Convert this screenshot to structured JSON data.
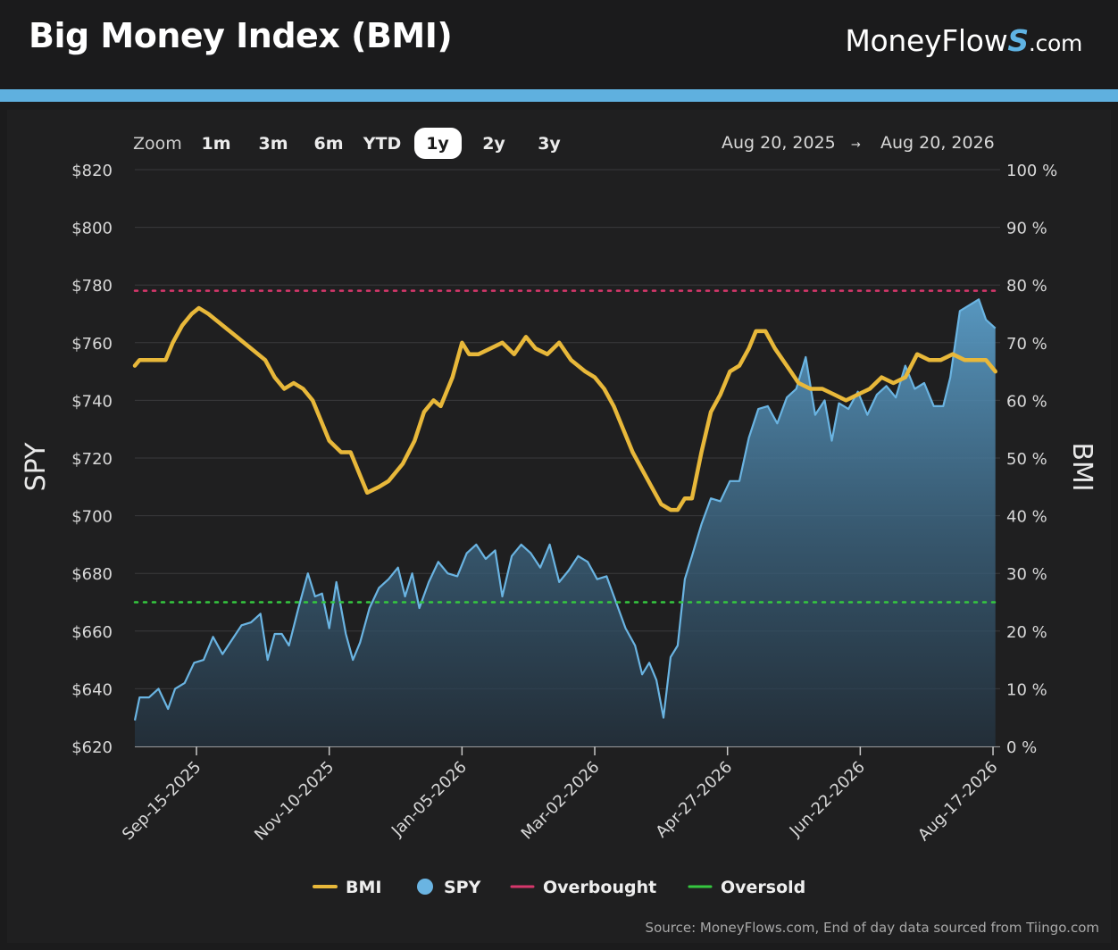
{
  "header": {
    "title": "Big Money Index (BMI)",
    "brand_prefix": "MoneyFlow",
    "brand_mark": "S",
    "brand_suffix": ".com"
  },
  "zoom": {
    "label": "Zoom",
    "options": [
      "1m",
      "3m",
      "6m",
      "YTD",
      "1y",
      "2y",
      "3y"
    ],
    "selected": "1y"
  },
  "date_range": {
    "from": "Aug 20, 2025",
    "arrow": "→",
    "to": "Aug 20, 2026"
  },
  "source": "Source: MoneyFlows.com, End of day data sourced from Tiingo.com",
  "colors": {
    "bmi": "#e8b83a",
    "spy": "#6ab4e2",
    "overbought": "#d6376b",
    "oversold": "#35c73f",
    "grid": "#3a3a3c",
    "tick_text": "#d8d8d8"
  },
  "chart_data": {
    "type": "line",
    "xlabel": "",
    "y_left_label": "SPY",
    "y_right_label": "BMI",
    "y_left_ticks": [
      "$820",
      "$800",
      "$780",
      "$760",
      "$740",
      "$720",
      "$700",
      "$680",
      "$660",
      "$640",
      "$620"
    ],
    "y_right_ticks": [
      "100 %",
      "90 %",
      "80 %",
      "70 %",
      "60 %",
      "50 %",
      "40 %",
      "30 %",
      "20 %",
      "10 %",
      "0 %"
    ],
    "y_left_range": [
      620,
      820
    ],
    "y_right_range": [
      0,
      100
    ],
    "x_range": [
      "2025-08-20",
      "2026-08-20"
    ],
    "x_ticks": [
      "Sep-15-2025",
      "Nov-10-2025",
      "Jan-05-2026",
      "Mar-02-2026",
      "Apr-27-2026",
      "Jun-22-2026",
      "Aug-17-2026"
    ],
    "overbought_level": 79,
    "oversold_level": 25,
    "grid": true,
    "legend_position": "bottom",
    "series": [
      {
        "name": "BMI",
        "axis": "right",
        "points": [
          [
            "2025-08-20",
            66
          ],
          [
            "2025-08-22",
            67
          ],
          [
            "2025-08-27",
            67
          ],
          [
            "2025-09-02",
            67
          ],
          [
            "2025-09-05",
            70
          ],
          [
            "2025-09-09",
            73
          ],
          [
            "2025-09-13",
            75
          ],
          [
            "2025-09-16",
            76
          ],
          [
            "2025-09-20",
            75
          ],
          [
            "2025-09-26",
            73
          ],
          [
            "2025-10-02",
            71
          ],
          [
            "2025-10-08",
            69
          ],
          [
            "2025-10-14",
            67
          ],
          [
            "2025-10-18",
            64
          ],
          [
            "2025-10-22",
            62
          ],
          [
            "2025-10-26",
            63
          ],
          [
            "2025-10-30",
            62
          ],
          [
            "2025-11-03",
            60
          ],
          [
            "2025-11-06",
            57
          ],
          [
            "2025-11-10",
            53
          ],
          [
            "2025-11-15",
            51
          ],
          [
            "2025-11-19",
            51
          ],
          [
            "2025-11-23",
            47
          ],
          [
            "2025-11-26",
            44
          ],
          [
            "2025-12-01",
            45
          ],
          [
            "2025-12-05",
            46
          ],
          [
            "2025-12-11",
            49
          ],
          [
            "2025-12-16",
            53
          ],
          [
            "2025-12-20",
            58
          ],
          [
            "2025-12-24",
            60
          ],
          [
            "2025-12-27",
            59
          ],
          [
            "2026-01-01",
            64
          ],
          [
            "2026-01-05",
            70
          ],
          [
            "2026-01-08",
            68
          ],
          [
            "2026-01-12",
            68
          ],
          [
            "2026-01-17",
            69
          ],
          [
            "2026-01-22",
            70
          ],
          [
            "2026-01-27",
            68
          ],
          [
            "2026-02-01",
            71
          ],
          [
            "2026-02-05",
            69
          ],
          [
            "2026-02-10",
            68
          ],
          [
            "2026-02-15",
            70
          ],
          [
            "2026-02-20",
            67
          ],
          [
            "2026-02-26",
            65
          ],
          [
            "2026-03-02",
            64
          ],
          [
            "2026-03-06",
            62
          ],
          [
            "2026-03-10",
            59
          ],
          [
            "2026-03-14",
            55
          ],
          [
            "2026-03-18",
            51
          ],
          [
            "2026-03-22",
            48
          ],
          [
            "2026-03-26",
            45
          ],
          [
            "2026-03-30",
            42
          ],
          [
            "2026-04-03",
            41
          ],
          [
            "2026-04-06",
            41
          ],
          [
            "2026-04-09",
            43
          ],
          [
            "2026-04-12",
            43
          ],
          [
            "2026-04-16",
            51
          ],
          [
            "2026-04-20",
            58
          ],
          [
            "2026-04-24",
            61
          ],
          [
            "2026-04-28",
            65
          ],
          [
            "2026-05-02",
            66
          ],
          [
            "2026-05-06",
            69
          ],
          [
            "2026-05-09",
            72
          ],
          [
            "2026-05-13",
            72
          ],
          [
            "2026-05-17",
            69
          ],
          [
            "2026-05-22",
            66
          ],
          [
            "2026-05-27",
            63
          ],
          [
            "2026-06-01",
            62
          ],
          [
            "2026-06-06",
            62
          ],
          [
            "2026-06-11",
            61
          ],
          [
            "2026-06-16",
            60
          ],
          [
            "2026-06-21",
            61
          ],
          [
            "2026-06-26",
            62
          ],
          [
            "2026-07-01",
            64
          ],
          [
            "2026-07-06",
            63
          ],
          [
            "2026-07-11",
            64
          ],
          [
            "2026-07-16",
            68
          ],
          [
            "2026-07-21",
            67
          ],
          [
            "2026-07-26",
            67
          ],
          [
            "2026-07-31",
            68
          ],
          [
            "2026-08-05",
            67
          ],
          [
            "2026-08-10",
            67
          ],
          [
            "2026-08-14",
            67
          ],
          [
            "2026-08-18",
            65
          ]
        ]
      },
      {
        "name": "SPY",
        "axis": "left",
        "points": [
          [
            "2025-08-20",
            629
          ],
          [
            "2025-08-22",
            637
          ],
          [
            "2025-08-26",
            637
          ],
          [
            "2025-08-30",
            640
          ],
          [
            "2025-09-03",
            633
          ],
          [
            "2025-09-06",
            640
          ],
          [
            "2025-09-10",
            642
          ],
          [
            "2025-09-14",
            649
          ],
          [
            "2025-09-18",
            650
          ],
          [
            "2025-09-22",
            658
          ],
          [
            "2025-09-26",
            652
          ],
          [
            "2025-09-30",
            657
          ],
          [
            "2025-10-04",
            662
          ],
          [
            "2025-10-08",
            663
          ],
          [
            "2025-10-12",
            666
          ],
          [
            "2025-10-15",
            650
          ],
          [
            "2025-10-18",
            659
          ],
          [
            "2025-10-21",
            659
          ],
          [
            "2025-10-24",
            655
          ],
          [
            "2025-10-28",
            668
          ],
          [
            "2025-11-01",
            680
          ],
          [
            "2025-11-04",
            672
          ],
          [
            "2025-11-07",
            673
          ],
          [
            "2025-11-10",
            661
          ],
          [
            "2025-11-13",
            677
          ],
          [
            "2025-11-17",
            659
          ],
          [
            "2025-11-20",
            650
          ],
          [
            "2025-11-23",
            656
          ],
          [
            "2025-11-27",
            668
          ],
          [
            "2025-12-01",
            675
          ],
          [
            "2025-12-05",
            678
          ],
          [
            "2025-12-09",
            682
          ],
          [
            "2025-12-12",
            672
          ],
          [
            "2025-12-15",
            680
          ],
          [
            "2025-12-18",
            668
          ],
          [
            "2025-12-22",
            677
          ],
          [
            "2025-12-26",
            684
          ],
          [
            "2025-12-30",
            680
          ],
          [
            "2026-01-03",
            679
          ],
          [
            "2026-01-07",
            687
          ],
          [
            "2026-01-11",
            690
          ],
          [
            "2026-01-15",
            685
          ],
          [
            "2026-01-19",
            688
          ],
          [
            "2026-01-22",
            672
          ],
          [
            "2026-01-26",
            686
          ],
          [
            "2026-01-30",
            690
          ],
          [
            "2026-02-03",
            687
          ],
          [
            "2026-02-07",
            682
          ],
          [
            "2026-02-11",
            690
          ],
          [
            "2026-02-15",
            677
          ],
          [
            "2026-02-19",
            681
          ],
          [
            "2026-02-23",
            686
          ],
          [
            "2026-02-27",
            684
          ],
          [
            "2026-03-03",
            678
          ],
          [
            "2026-03-07",
            679
          ],
          [
            "2026-03-11",
            670
          ],
          [
            "2026-03-15",
            661
          ],
          [
            "2026-03-19",
            655
          ],
          [
            "2026-03-22",
            645
          ],
          [
            "2026-03-25",
            649
          ],
          [
            "2026-03-28",
            643
          ],
          [
            "2026-03-31",
            630
          ],
          [
            "2026-04-03",
            651
          ],
          [
            "2026-04-06",
            655
          ],
          [
            "2026-04-09",
            678
          ],
          [
            "2026-04-12",
            686
          ],
          [
            "2026-04-16",
            697
          ],
          [
            "2026-04-20",
            706
          ],
          [
            "2026-04-24",
            705
          ],
          [
            "2026-04-28",
            712
          ],
          [
            "2026-05-02",
            712
          ],
          [
            "2026-05-06",
            727
          ],
          [
            "2026-05-10",
            737
          ],
          [
            "2026-05-14",
            738
          ],
          [
            "2026-05-18",
            732
          ],
          [
            "2026-05-22",
            741
          ],
          [
            "2026-05-26",
            744
          ],
          [
            "2026-05-30",
            755
          ],
          [
            "2026-06-03",
            735
          ],
          [
            "2026-06-07",
            740
          ],
          [
            "2026-06-10",
            726
          ],
          [
            "2026-06-13",
            739
          ],
          [
            "2026-06-17",
            737
          ],
          [
            "2026-06-21",
            743
          ],
          [
            "2026-06-25",
            735
          ],
          [
            "2026-06-29",
            742
          ],
          [
            "2026-07-03",
            745
          ],
          [
            "2026-07-07",
            741
          ],
          [
            "2026-07-11",
            752
          ],
          [
            "2026-07-15",
            744
          ],
          [
            "2026-07-19",
            746
          ],
          [
            "2026-07-23",
            738
          ],
          [
            "2026-07-27",
            738
          ],
          [
            "2026-07-30",
            748
          ],
          [
            "2026-08-03",
            771
          ],
          [
            "2026-08-07",
            773
          ],
          [
            "2026-08-11",
            775
          ],
          [
            "2026-08-14",
            768
          ],
          [
            "2026-08-18",
            765
          ]
        ]
      }
    ],
    "legend": [
      {
        "name": "BMI",
        "shape": "line"
      },
      {
        "name": "SPY",
        "shape": "dot"
      },
      {
        "name": "Overbought",
        "shape": "line"
      },
      {
        "name": "Oversold",
        "shape": "line"
      }
    ]
  }
}
